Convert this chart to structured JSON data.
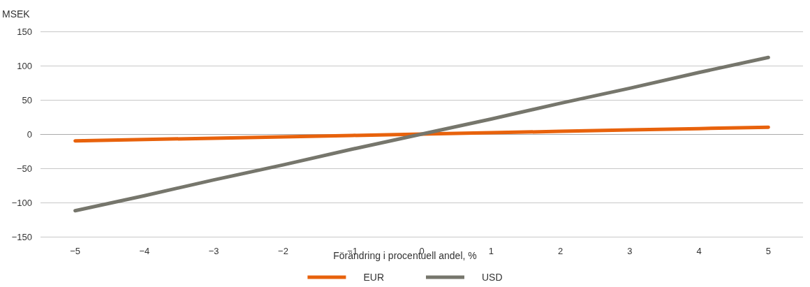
{
  "chart_data": {
    "type": "line",
    "ylabel": "MSEK",
    "xlabel": "Förändring i procentuell andel, %",
    "categories": [
      "−5",
      "−4",
      "−3",
      "−2",
      "−1",
      "0",
      "1",
      "2",
      "3",
      "4",
      "5"
    ],
    "series": [
      {
        "name": "EUR",
        "color": "#e8620c",
        "values": [
          -10,
          -8,
          -6,
          -4,
          -2,
          0,
          2,
          4,
          6,
          8,
          10
        ]
      },
      {
        "name": "USD",
        "color": "#76766c",
        "values": [
          -112,
          -90,
          -67,
          -45,
          -22,
          0,
          22,
          45,
          67,
          90,
          112
        ]
      }
    ],
    "ylim": [
      -150,
      150
    ],
    "yticks": [
      {
        "value": -150,
        "label": "−150"
      },
      {
        "value": -100,
        "label": "−100"
      },
      {
        "value": -50,
        "label": "−50"
      },
      0,
      50,
      100,
      150
    ],
    "grid": "y",
    "legend": "bottom",
    "marker": "none",
    "line_style": "solid"
  }
}
